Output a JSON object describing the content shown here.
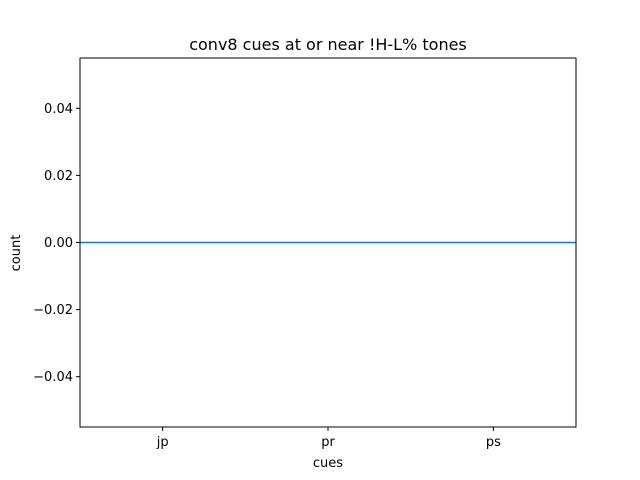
{
  "chart_data": {
    "type": "line",
    "title": "conv8 cues at or near !H-L% tones",
    "xlabel": "cues",
    "ylabel": "count",
    "categories": [
      "jp",
      "pr",
      "ps"
    ],
    "series": [
      {
        "values": [
          0,
          0,
          0
        ],
        "color": "#1f77b4"
      }
    ],
    "ylim": [
      -0.055,
      0.055
    ],
    "yticks": [
      -0.04,
      -0.02,
      0.0,
      0.02,
      0.04
    ],
    "ytick_labels": [
      "−0.04",
      "−0.02",
      "0.00",
      "0.02",
      "0.04"
    ],
    "grid": false,
    "legend": "none"
  }
}
